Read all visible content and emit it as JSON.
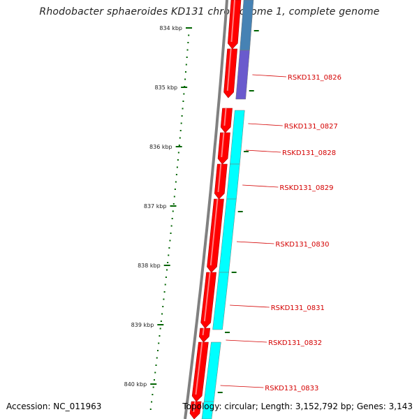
{
  "title": "Rhodobacter sphaeroides KD131 chromosome 1, complete genome",
  "accession": "Accession: NC_011963",
  "summary": "Topology: circular; Length: 3,152,792 bp; Genes: 3,143",
  "scale_ticks": [
    "834 kbp",
    "835 kbp",
    "836 kbp",
    "837 kbp",
    "838 kbp",
    "839 kbp",
    "840 kbp"
  ],
  "gene_labels": [
    "RSKD131_0826",
    "RSKD131_0827",
    "RSKD131_0828",
    "RSKD131_0829",
    "RSKD131_0830",
    "RSKD131_0831",
    "RSKD131_0832",
    "RSKD131_0833"
  ],
  "colors": {
    "backbone": "#808080",
    "cds": "#ff0000",
    "gene_blue": "#4682b4",
    "gene_purple": "#6a5acd",
    "gene_cyan": "#00ffff",
    "ticks": "#006400",
    "labels": "#d40000"
  }
}
